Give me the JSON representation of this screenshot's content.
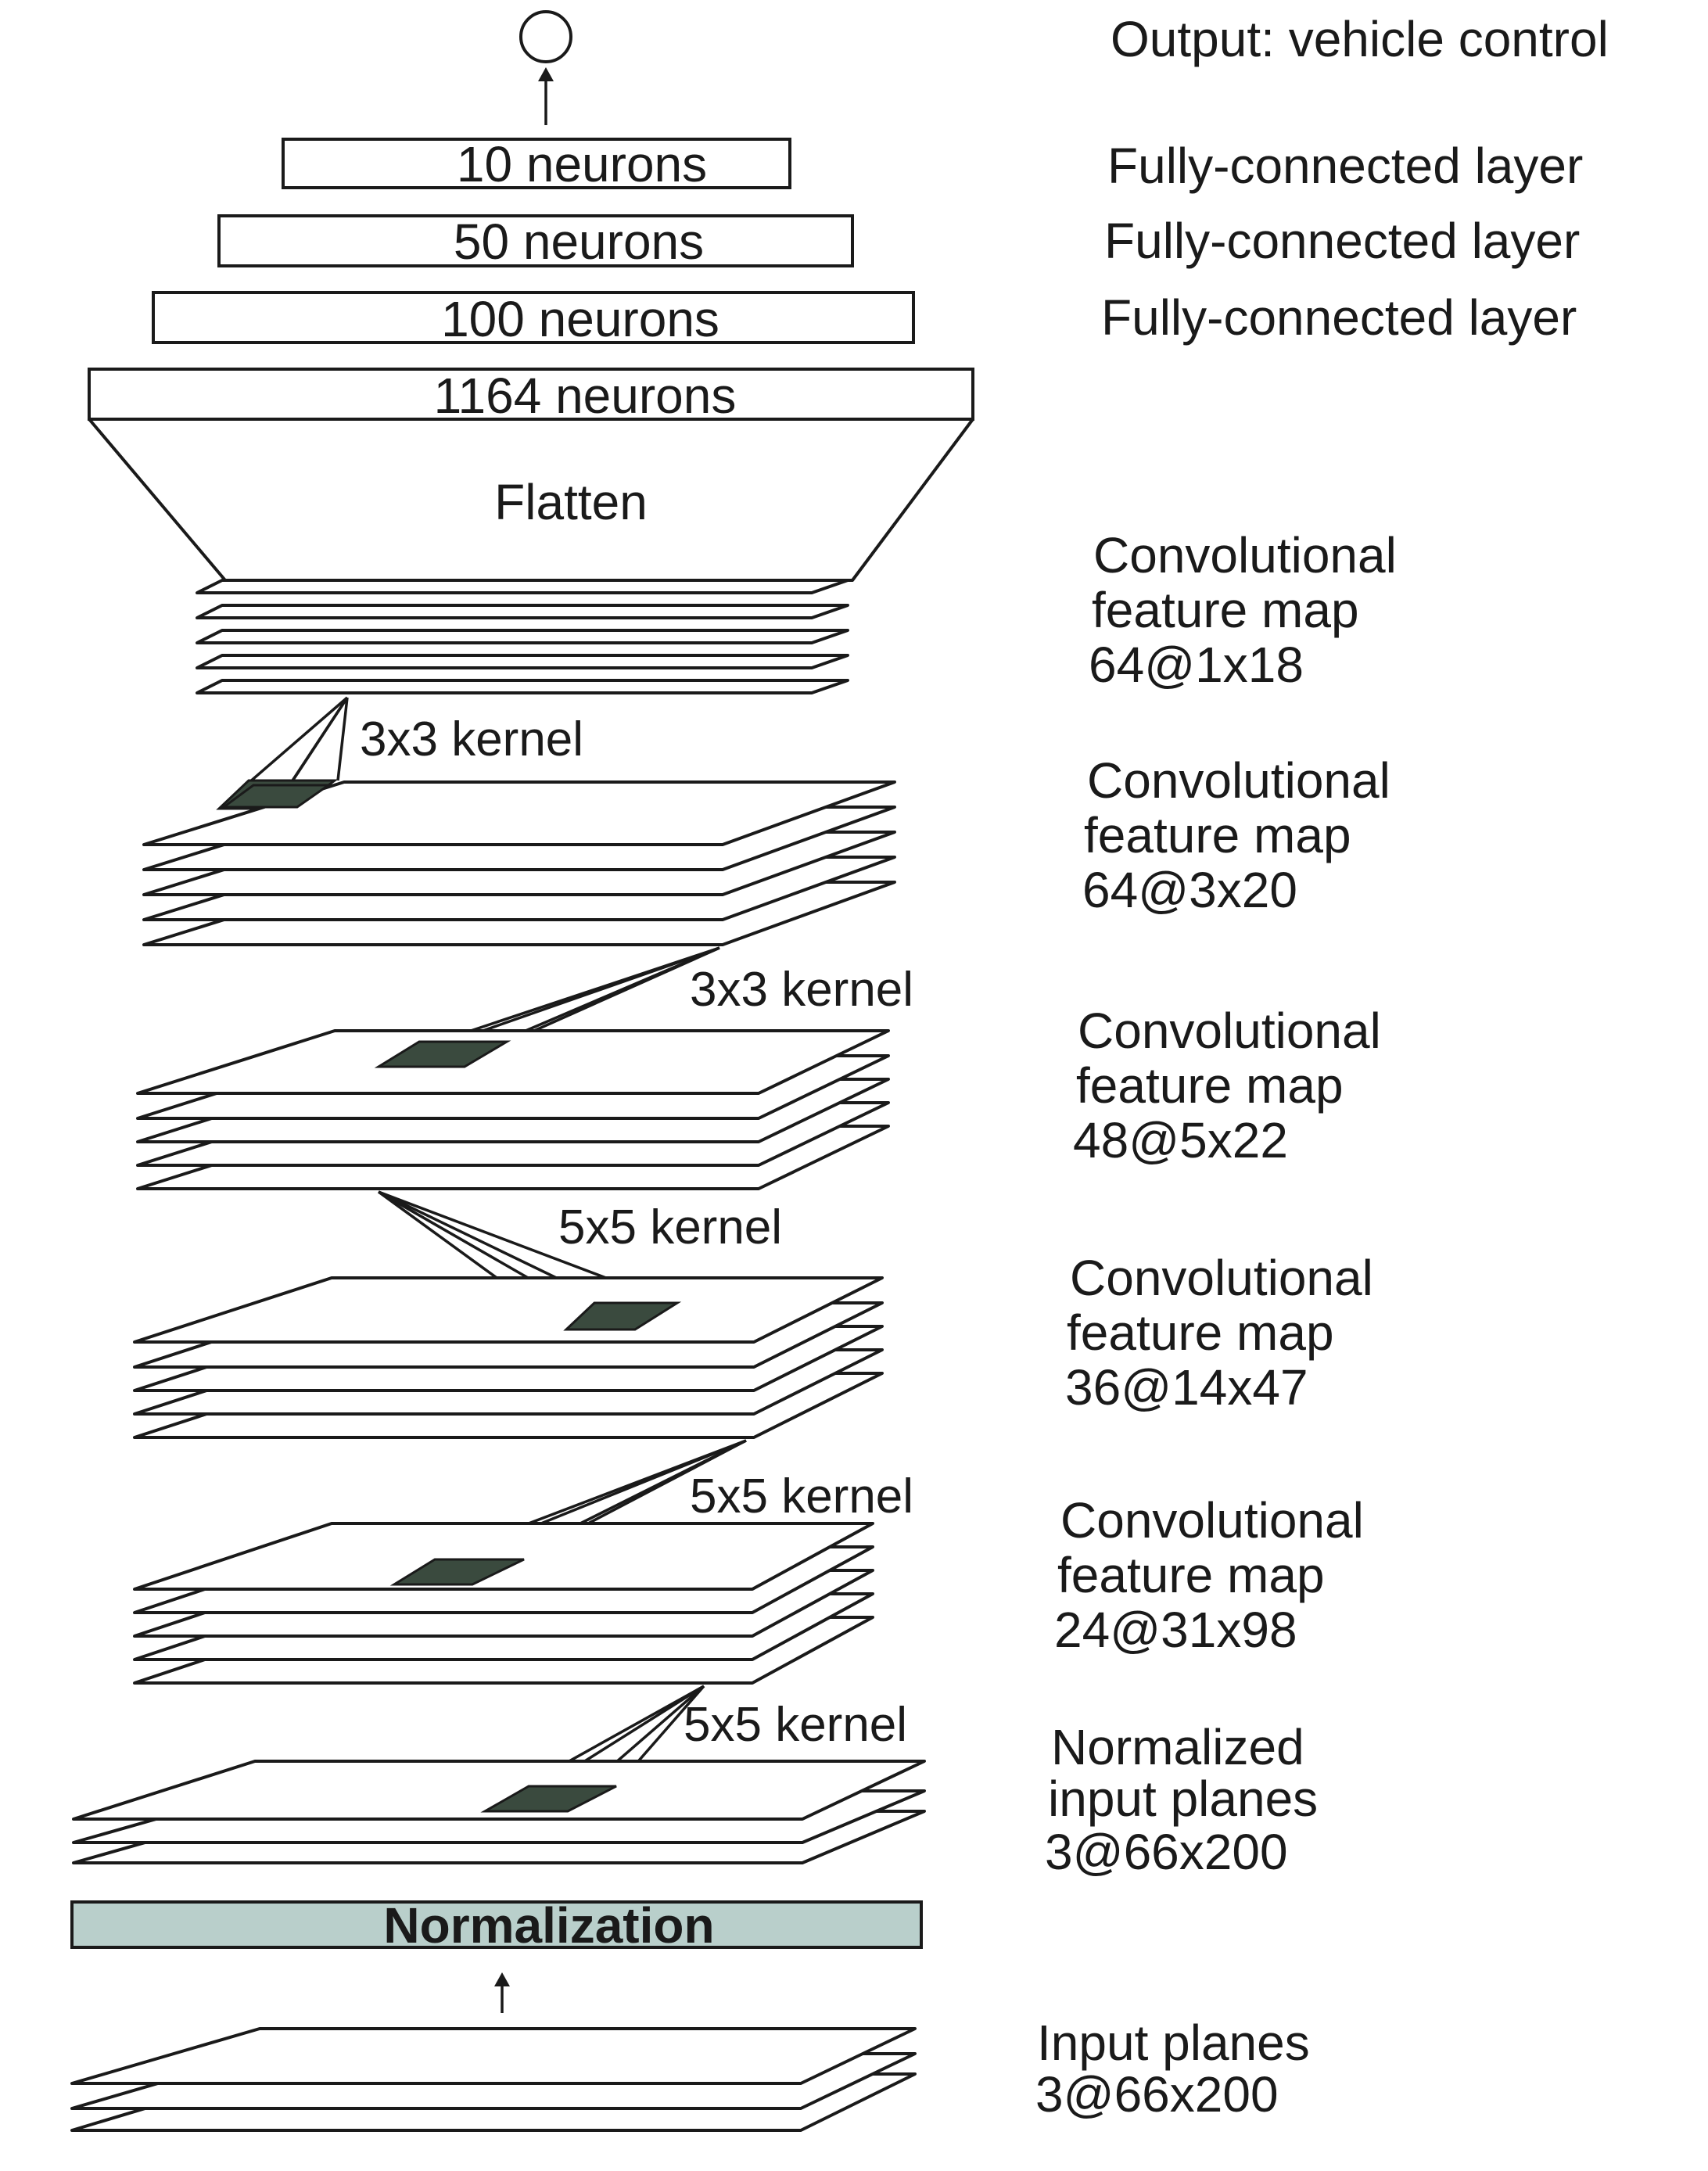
{
  "output": {
    "label": "Output: vehicle control"
  },
  "fc_layers": [
    {
      "neurons": "10 neurons",
      "label": "Fully-connected layer"
    },
    {
      "neurons": "50 neurons",
      "label": "Fully-connected layer"
    },
    {
      "neurons": "100 neurons",
      "label": "Fully-connected layer"
    },
    {
      "neurons": "1164 neurons",
      "label": ""
    }
  ],
  "flatten": {
    "label": "Flatten"
  },
  "feature_maps": [
    {
      "line1": "Convolutional",
      "line2": "feature map",
      "line3": "64@1x18"
    },
    {
      "line1": "Convolutional",
      "line2": "feature map",
      "line3": "64@3x20"
    },
    {
      "line1": "Convolutional",
      "line2": "feature map",
      "line3": "48@5x22"
    },
    {
      "line1": "Convolutional",
      "line2": "feature map",
      "line3": "36@14x47"
    },
    {
      "line1": "Convolutional",
      "line2": "feature map",
      "line3": "24@31x98"
    }
  ],
  "kernels": [
    "3x3 kernel",
    "3x3 kernel",
    "5x5 kernel",
    "5x5 kernel",
    "5x5 kernel"
  ],
  "normalized_input": {
    "line1": "Normalized",
    "line2": "input planes",
    "line3": "3@66x200"
  },
  "normalization": {
    "label": "Normalization"
  },
  "input": {
    "line1": "Input planes",
    "line2": "3@66x200"
  },
  "colors": {
    "ink": "#1a1a1a",
    "kernel_fill": "#3a4a3e",
    "normalization_fill": "#b9cfcb"
  }
}
